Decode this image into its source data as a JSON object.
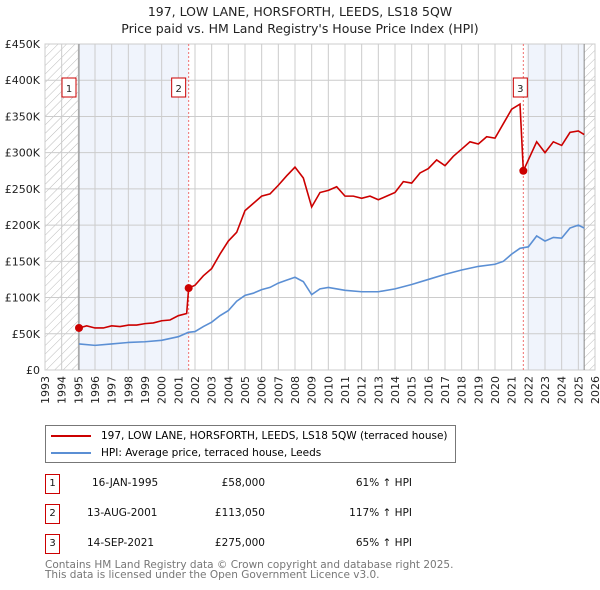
{
  "chart_data": {
    "type": "line",
    "title": "197, LOW LANE, HORSFORTH, LEEDS, LS18 5QW",
    "subtitle": "Price paid vs. HM Land Registry's House Price Index (HPI)",
    "xlim": [
      1993,
      2026
    ],
    "ylim": [
      0,
      450000
    ],
    "y_ticks": [
      {
        "v": 0,
        "label": "£0"
      },
      {
        "v": 50000,
        "label": "£50K"
      },
      {
        "v": 100000,
        "label": "£100K"
      },
      {
        "v": 150000,
        "label": "£150K"
      },
      {
        "v": 200000,
        "label": "£200K"
      },
      {
        "v": 250000,
        "label": "£250K"
      },
      {
        "v": 300000,
        "label": "£300K"
      },
      {
        "v": 350000,
        "label": "£350K"
      },
      {
        "v": 400000,
        "label": "£400K"
      },
      {
        "v": 450000,
        "label": "£450K"
      }
    ],
    "x_ticks": [
      "1993",
      "1994",
      "1995",
      "1996",
      "1997",
      "1998",
      "1999",
      "2000",
      "2001",
      "2002",
      "2003",
      "2004",
      "2005",
      "2006",
      "2007",
      "2008",
      "2009",
      "2010",
      "2011",
      "2012",
      "2013",
      "2014",
      "2015",
      "2016",
      "2017",
      "2018",
      "2019",
      "2020",
      "2021",
      "2022",
      "2023",
      "2024",
      "2025",
      "2026"
    ],
    "grid": true,
    "shaded_ranges": [
      [
        1995.04,
        2001.62
      ],
      [
        2021.9,
        2025.35
      ]
    ],
    "hatched_ranges": [
      [
        1993,
        1995.04
      ],
      [
        2025.35,
        2026
      ]
    ],
    "series": [
      {
        "name": "197, LOW LANE, HORSFORTH, LEEDS, LS18 5QW (terraced house)",
        "color": "#cc0000",
        "points": [
          [
            1995.04,
            58000
          ],
          [
            1995.5,
            61000
          ],
          [
            1996,
            58000
          ],
          [
            1996.5,
            58000
          ],
          [
            1997,
            61000
          ],
          [
            1997.5,
            60000
          ],
          [
            1998,
            62000
          ],
          [
            1998.5,
            62000
          ],
          [
            1999,
            64000
          ],
          [
            1999.5,
            65000
          ],
          [
            2000,
            68000
          ],
          [
            2000.5,
            69000
          ],
          [
            2001,
            75000
          ],
          [
            2001.5,
            78000
          ],
          [
            2001.62,
            113050
          ],
          [
            2002,
            117000
          ],
          [
            2002.5,
            130000
          ],
          [
            2003,
            140000
          ],
          [
            2003.5,
            160000
          ],
          [
            2004,
            178000
          ],
          [
            2004.5,
            190000
          ],
          [
            2005,
            220000
          ],
          [
            2005.5,
            230000
          ],
          [
            2006,
            240000
          ],
          [
            2006.5,
            243000
          ],
          [
            2007,
            255000
          ],
          [
            2007.5,
            268000
          ],
          [
            2008,
            280000
          ],
          [
            2008.5,
            265000
          ],
          [
            2009,
            225000
          ],
          [
            2009.5,
            245000
          ],
          [
            2010,
            248000
          ],
          [
            2010.5,
            253000
          ],
          [
            2011,
            240000
          ],
          [
            2011.5,
            240000
          ],
          [
            2012,
            237000
          ],
          [
            2012.5,
            240000
          ],
          [
            2013,
            235000
          ],
          [
            2013.5,
            240000
          ],
          [
            2014,
            245000
          ],
          [
            2014.5,
            260000
          ],
          [
            2015,
            258000
          ],
          [
            2015.5,
            272000
          ],
          [
            2016,
            278000
          ],
          [
            2016.5,
            290000
          ],
          [
            2017,
            282000
          ],
          [
            2017.5,
            295000
          ],
          [
            2018,
            305000
          ],
          [
            2018.5,
            315000
          ],
          [
            2019,
            312000
          ],
          [
            2019.5,
            322000
          ],
          [
            2020,
            320000
          ],
          [
            2020.5,
            340000
          ],
          [
            2021,
            360000
          ],
          [
            2021.5,
            367000
          ],
          [
            2021.7,
            275000
          ],
          [
            2022,
            290000
          ],
          [
            2022.5,
            315000
          ],
          [
            2023,
            300000
          ],
          [
            2023.5,
            315000
          ],
          [
            2024,
            310000
          ],
          [
            2024.5,
            328000
          ],
          [
            2025,
            330000
          ],
          [
            2025.35,
            325000
          ]
        ]
      },
      {
        "name": "HPI: Average price, terraced house, Leeds",
        "color": "#5b8fd4",
        "points": [
          [
            1995.04,
            36000
          ],
          [
            1996,
            34000
          ],
          [
            1997,
            36000
          ],
          [
            1998,
            38000
          ],
          [
            1999,
            39000
          ],
          [
            2000,
            41000
          ],
          [
            2001,
            46000
          ],
          [
            2001.6,
            52000
          ],
          [
            2002,
            53000
          ],
          [
            2002.5,
            60000
          ],
          [
            2003,
            66000
          ],
          [
            2003.5,
            75000
          ],
          [
            2004,
            82000
          ],
          [
            2004.5,
            95000
          ],
          [
            2005,
            103000
          ],
          [
            2005.5,
            106000
          ],
          [
            2006,
            111000
          ],
          [
            2006.5,
            114000
          ],
          [
            2007,
            120000
          ],
          [
            2007.5,
            124000
          ],
          [
            2008,
            128000
          ],
          [
            2008.5,
            122000
          ],
          [
            2009,
            104000
          ],
          [
            2009.5,
            112000
          ],
          [
            2010,
            114000
          ],
          [
            2011,
            110000
          ],
          [
            2012,
            108000
          ],
          [
            2013,
            108000
          ],
          [
            2014,
            112000
          ],
          [
            2015,
            118000
          ],
          [
            2016,
            125000
          ],
          [
            2017,
            132000
          ],
          [
            2018,
            138000
          ],
          [
            2019,
            143000
          ],
          [
            2020,
            146000
          ],
          [
            2020.5,
            150000
          ],
          [
            2021,
            160000
          ],
          [
            2021.5,
            168000
          ],
          [
            2022,
            170000
          ],
          [
            2022.5,
            185000
          ],
          [
            2023,
            178000
          ],
          [
            2023.5,
            183000
          ],
          [
            2024,
            182000
          ],
          [
            2024.5,
            196000
          ],
          [
            2025,
            200000
          ],
          [
            2025.35,
            196000
          ]
        ]
      }
    ],
    "sales": [
      {
        "id": "1",
        "x": 1995.04,
        "y": 58000,
        "date": "16-JAN-1995",
        "price": "£58,000",
        "hpi": "61% ↑ HPI"
      },
      {
        "id": "2",
        "x": 2001.62,
        "y": 113050,
        "date": "13-AUG-2001",
        "price": "£113,050",
        "hpi": "117% ↑ HPI"
      },
      {
        "id": "3",
        "x": 2021.7,
        "y": 275000,
        "date": "14-SEP-2021",
        "price": "£275,000",
        "hpi": "65% ↑ HPI"
      }
    ],
    "legend_position": "below"
  },
  "footer": [
    "Contains HM Land Registry data © Crown copyright and database right 2025.",
    "This data is licensed under the Open Government Licence v3.0."
  ]
}
